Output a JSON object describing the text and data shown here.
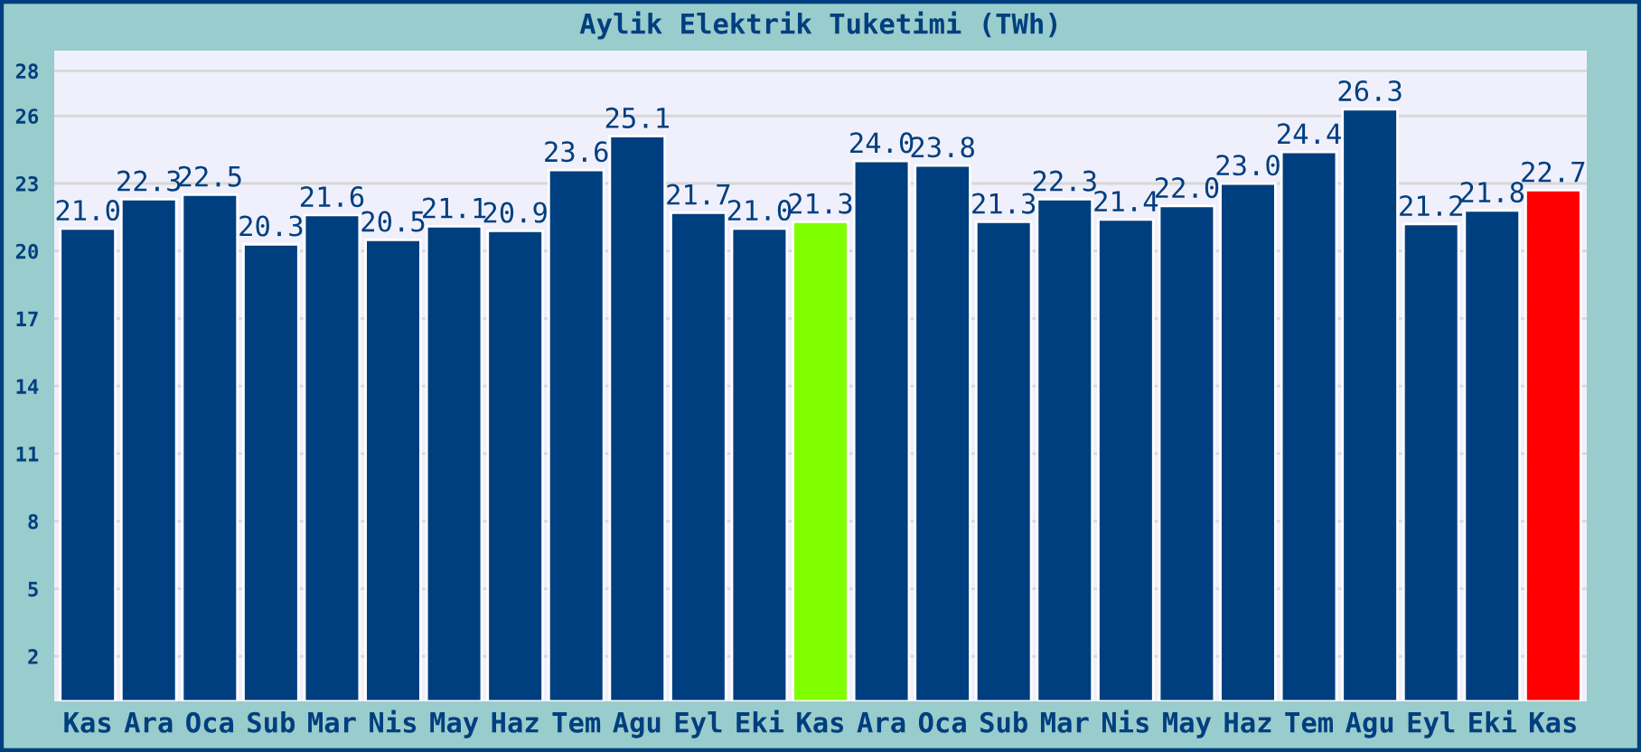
{
  "chart_data": {
    "type": "bar",
    "title": "Aylik Elektrik Tuketimi (TWh)",
    "categories": [
      "Kas",
      "Ara",
      "Oca",
      "Sub",
      "Mar",
      "Nis",
      "May",
      "Haz",
      "Tem",
      "Agu",
      "Eyl",
      "Eki",
      "Kas",
      "Ara",
      "Oca",
      "Sub",
      "Mar",
      "Nis",
      "May",
      "Haz",
      "Tem",
      "Agu",
      "Eyl",
      "Eki",
      "Kas"
    ],
    "values": [
      21.0,
      22.3,
      22.5,
      20.3,
      21.6,
      20.5,
      21.1,
      20.9,
      23.6,
      25.1,
      21.7,
      21.0,
      21.3,
      24.0,
      23.8,
      21.3,
      22.3,
      21.4,
      22.0,
      23.0,
      24.4,
      26.3,
      21.2,
      21.8,
      22.7
    ],
    "colors": [
      "#003f7f",
      "#003f7f",
      "#003f7f",
      "#003f7f",
      "#003f7f",
      "#003f7f",
      "#003f7f",
      "#003f7f",
      "#003f7f",
      "#003f7f",
      "#003f7f",
      "#003f7f",
      "#80ff00",
      "#003f7f",
      "#003f7f",
      "#003f7f",
      "#003f7f",
      "#003f7f",
      "#003f7f",
      "#003f7f",
      "#003f7f",
      "#003f7f",
      "#003f7f",
      "#003f7f",
      "#ff0000"
    ],
    "ylim": [
      0,
      28.9
    ],
    "yticks": [
      2,
      5,
      8,
      11,
      14,
      17,
      20,
      23,
      26,
      28
    ],
    "value_labels": [
      "21.0",
      "22.3",
      "22.5",
      "20.3",
      "21.6",
      "20.5",
      "21.1",
      "20.9",
      "23.6",
      "25.1",
      "21.7",
      "21.0",
      "21.3",
      "24.0",
      "23.8",
      "21.3",
      "22.3",
      "21.4",
      "22.0",
      "23.0",
      "24.4",
      "26.3",
      "21.2",
      "21.8",
      "22.7"
    ],
    "grid": "y"
  }
}
